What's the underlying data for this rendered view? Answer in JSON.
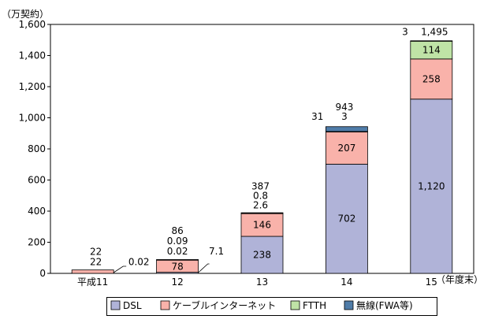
{
  "chart_data": {
    "type": "bar",
    "stacked": true,
    "ylabel": "（万契約）",
    "xlabel": "（年度末）",
    "ylim": [
      0,
      1600
    ],
    "yticks": [
      "0",
      "200",
      "400",
      "600",
      "800",
      "1,000",
      "1,200",
      "1,400",
      "1,600"
    ],
    "categories": [
      "平成11",
      "12",
      "13",
      "14",
      "15"
    ],
    "series": [
      {
        "name": "DSL",
        "color": "#b0b3d8",
        "values": [
          0.02,
          7.1,
          238,
          702,
          1120
        ]
      },
      {
        "name": "ケーブルインターネット",
        "color": "#f9b2aa",
        "values": [
          22,
          78,
          146,
          207,
          258
        ]
      },
      {
        "name": "FTTH",
        "color": "#bfe3a6",
        "values": [
          0,
          0.02,
          2.6,
          3,
          114
        ]
      },
      {
        "name": "無線(FWA等)",
        "color": "#4f7ca8",
        "values": [
          0,
          0.09,
          0.8,
          31,
          3
        ]
      }
    ],
    "totals": [
      22,
      86,
      387,
      943,
      1495
    ],
    "labels": {
      "c0": {
        "total": "22",
        "cable": "22",
        "dsl": "0.02"
      },
      "c1": {
        "total": "86",
        "fwa": "0.09",
        "ftth": "0.02",
        "cable": "78",
        "dsl": "7.1"
      },
      "c2": {
        "total": "387",
        "fwa": "0.8",
        "ftth": "2.6",
        "cable": "146",
        "dsl": "238"
      },
      "c3": {
        "total": "943",
        "ftth": "3",
        "fwa": "31",
        "cable": "207",
        "dsl": "702"
      },
      "c4": {
        "total": "1,495",
        "fwa": "3",
        "ftth": "114",
        "cable": "258",
        "dsl": "1,120"
      }
    },
    "grid": false,
    "legend_position": "bottom"
  }
}
